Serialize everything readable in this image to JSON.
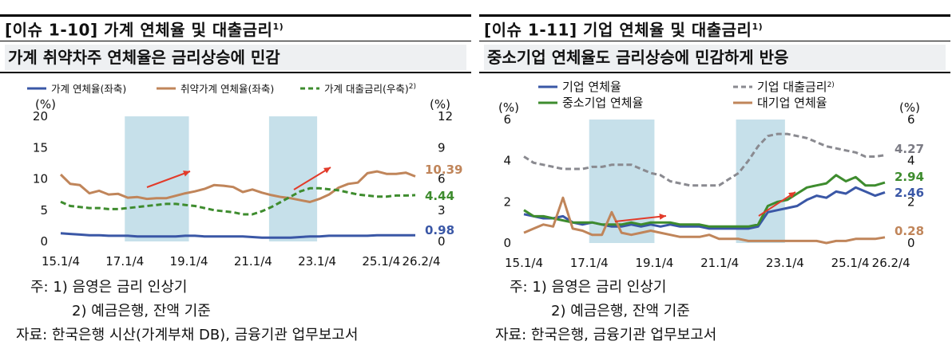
{
  "left": {
    "title": "[이슈 1-10] 가계 연체율 및 대출금리",
    "title_sup": "1)",
    "subtitle": "가계 취약차주 연체율은 금리상승에 민감",
    "notes": [
      "주: 1) 음영은 금리 인상기",
      "2) 예금은행, 잔액 기준",
      "자료: 한국은행 시산(가계부채 DB), 금융기관 업무보고서"
    ],
    "chart": {
      "type": "line",
      "left_unit": "(%)",
      "right_unit": "(%)",
      "left_ticks": [
        "20",
        "15",
        "10",
        "5",
        "0"
      ],
      "right_ticks": [
        "12",
        "9",
        "6",
        "3",
        "0"
      ],
      "x_ticks": [
        "15.1/4",
        "17.1/4",
        "19.1/4",
        "21.1/4",
        "23.1/4",
        "25.1/4",
        "26.2/4"
      ],
      "legend": [
        {
          "name": "가계 연체율(좌축)",
          "style": "solid",
          "color": "#3a57a6"
        },
        {
          "name": "취약가계 연체율(좌축)",
          "style": "solid",
          "color": "#c0855a"
        },
        {
          "name": "가계 대출금리(우축)",
          "sup": "2)",
          "style": "dashed",
          "color": "#3e8c2e"
        }
      ],
      "shading": [
        {
          "from": "17.1/4",
          "to": "19.1/4"
        },
        {
          "from": "21.3/4",
          "to": "23.1/4"
        }
      ],
      "end_labels": [
        {
          "text": "10.39",
          "color": "#c0855a"
        },
        {
          "text": "4.44",
          "color": "#3e8c2e"
        },
        {
          "text": "0.98",
          "color": "#3a57a6"
        }
      ]
    },
    "chart_data": {
      "type": "line",
      "x_range": [
        "15.1/4",
        "26.2/4"
      ],
      "ylim_left": [
        0,
        20
      ],
      "ylim_right": [
        0,
        12
      ],
      "series": [
        {
          "name": "가계 연체율(좌축)",
          "axis": "left",
          "values": [
            1.3,
            1.2,
            1.1,
            1.0,
            1.0,
            0.9,
            0.9,
            0.9,
            0.8,
            0.8,
            0.8,
            0.8,
            0.8,
            0.9,
            0.9,
            0.8,
            0.8,
            0.8,
            0.8,
            0.8,
            0.7,
            0.6,
            0.6,
            0.6,
            0.6,
            0.7,
            0.8,
            0.8,
            0.9,
            0.9,
            0.9,
            0.9,
            0.9,
            1.0,
            1.0,
            1.0,
            1.0,
            0.98
          ]
        },
        {
          "name": "취약가계 연체율(좌축)",
          "axis": "left",
          "values": [
            10.7,
            9.2,
            9.0,
            7.7,
            8.1,
            7.5,
            7.6,
            7.0,
            7.1,
            6.8,
            6.9,
            6.9,
            7.3,
            7.7,
            8.0,
            8.4,
            9.0,
            8.9,
            8.7,
            7.9,
            8.3,
            7.8,
            7.4,
            7.1,
            6.9,
            6.6,
            6.3,
            6.8,
            7.5,
            8.6,
            9.2,
            9.4,
            10.9,
            11.2,
            10.8,
            10.8,
            11.0,
            10.4
          ]
        },
        {
          "name": "가계 대출금리(우축)",
          "axis": "right",
          "values": [
            3.8,
            3.4,
            3.3,
            3.2,
            3.2,
            3.1,
            3.1,
            3.2,
            3.3,
            3.4,
            3.5,
            3.6,
            3.6,
            3.5,
            3.4,
            3.2,
            3.0,
            2.9,
            2.8,
            2.6,
            2.6,
            2.9,
            3.3,
            3.8,
            4.3,
            4.8,
            5.1,
            5.1,
            5.0,
            4.9,
            4.7,
            4.5,
            4.4,
            4.3,
            4.3,
            4.4,
            4.4,
            4.44
          ]
        }
      ]
    }
  },
  "right": {
    "title": "[이슈 1-11] 기업 연체율 및 대출금리",
    "title_sup": "1)",
    "subtitle": "중소기업 연체율도 금리상승에 민감하게 반응",
    "notes": [
      "주: 1) 음영은 금리 인상기",
      "2) 예금은행, 잔액 기준",
      "자료: 한국은행, 금융기관 업무보고서"
    ],
    "chart": {
      "type": "line",
      "left_unit": "(%)",
      "right_unit": "(%)",
      "left_ticks": [
        "6",
        "4",
        "2",
        "0"
      ],
      "right_ticks": [
        "6",
        "4",
        "2",
        "0"
      ],
      "x_ticks": [
        "15.1/4",
        "17.1/4",
        "19.1/4",
        "21.1/4",
        "23.1/4",
        "25.1/4",
        "26.2/4"
      ],
      "legend": [
        {
          "name": "기업 연체율",
          "style": "solid",
          "color": "#3a57a6"
        },
        {
          "name": "중소기업 연체율",
          "style": "solid",
          "color": "#3e8c2e"
        },
        {
          "name": "기업 대출금리",
          "sup": "2)",
          "style": "dashed",
          "color": "#8a8a90"
        },
        {
          "name": "대기업 연체율",
          "style": "solid",
          "color": "#c0855a"
        }
      ],
      "shading": [
        {
          "from": "17.1/4",
          "to": "19.1/4"
        },
        {
          "from": "21.3/4",
          "to": "23.1/4"
        }
      ],
      "end_labels": [
        {
          "text": "4.27",
          "color": "#7b7b84"
        },
        {
          "text": "2.94",
          "color": "#3e8c2e"
        },
        {
          "text": "2.46",
          "color": "#3a57a6"
        },
        {
          "text": "0.28",
          "color": "#c0855a"
        }
      ]
    },
    "chart_data": {
      "type": "line",
      "x_range": [
        "15.1/4",
        "26.2/4"
      ],
      "ylim_left": [
        0,
        6
      ],
      "ylim_right": [
        0,
        6
      ],
      "series": [
        {
          "name": "기업 연체율",
          "axis": "left",
          "values": [
            1.4,
            1.3,
            1.2,
            1.2,
            1.3,
            1.0,
            0.9,
            1.0,
            0.9,
            0.8,
            0.8,
            0.9,
            0.8,
            0.9,
            0.8,
            0.9,
            0.8,
            0.8,
            0.8,
            0.7,
            0.7,
            0.7,
            0.7,
            0.7,
            0.8,
            1.5,
            1.6,
            1.7,
            1.8,
            2.1,
            2.3,
            2.2,
            2.5,
            2.4,
            2.7,
            2.5,
            2.3,
            2.46
          ]
        },
        {
          "name": "중소기업 연체율",
          "axis": "left",
          "values": [
            1.6,
            1.3,
            1.3,
            1.2,
            1.1,
            1.0,
            1.0,
            1.0,
            0.9,
            0.9,
            0.9,
            1.0,
            0.9,
            1.0,
            1.0,
            1.0,
            0.9,
            0.9,
            0.9,
            0.8,
            0.8,
            0.8,
            0.8,
            0.8,
            0.9,
            1.8,
            2.0,
            2.1,
            2.4,
            2.7,
            2.8,
            2.9,
            3.3,
            3.0,
            3.2,
            2.8,
            2.8,
            2.94
          ]
        },
        {
          "name": "기업 대출금리",
          "axis": "right",
          "values": [
            4.2,
            3.9,
            3.8,
            3.7,
            3.6,
            3.6,
            3.6,
            3.7,
            3.7,
            3.8,
            3.8,
            3.8,
            3.6,
            3.4,
            3.3,
            3.0,
            2.9,
            2.8,
            2.8,
            2.8,
            2.8,
            3.1,
            3.4,
            4.0,
            4.7,
            5.2,
            5.3,
            5.3,
            5.2,
            5.1,
            4.9,
            4.7,
            4.6,
            4.5,
            4.4,
            4.2,
            4.2,
            4.27
          ]
        },
        {
          "name": "대기업 연체율",
          "axis": "left",
          "values": [
            0.5,
            0.7,
            0.9,
            0.8,
            2.2,
            0.7,
            0.6,
            0.4,
            0.4,
            1.5,
            0.5,
            0.4,
            0.5,
            0.6,
            0.5,
            0.4,
            0.3,
            0.3,
            0.3,
            0.4,
            0.2,
            0.2,
            0.2,
            0.1,
            0.1,
            0.1,
            0.1,
            0.1,
            0.1,
            0.1,
            0.1,
            0.0,
            0.1,
            0.1,
            0.2,
            0.2,
            0.2,
            0.28
          ]
        }
      ]
    }
  }
}
